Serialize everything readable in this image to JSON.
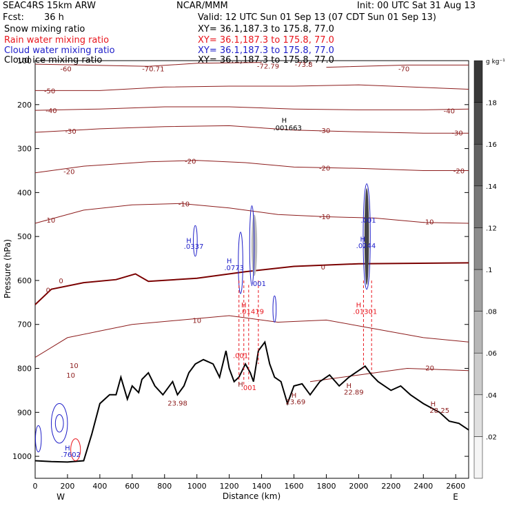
{
  "header": {
    "model": "SEAC4RS 15km ARW",
    "org": "NCAR/MMM",
    "init": "Init: 00 UTC Sat 31 Aug 13",
    "fcst_label": "Fcst:",
    "fcst_value": "36 h",
    "valid": "Valid: 12 UTC Sun 01 Sep 13 (07 CDT Sun 01 Sep 13)",
    "fields": [
      {
        "name": "Snow mixing ratio",
        "color": "#000000",
        "xy": "XY=  36.1,187.3 to 175.8, 77.0"
      },
      {
        "name": "Rain water mixing ratio",
        "color": "#e8141c",
        "xy": "XY=  36.1,187.3 to 175.8, 77.0"
      },
      {
        "name": "Cloud water mixing ratio",
        "color": "#1c1cc8",
        "xy": "XY=  36.1,187.3 to 175.8, 77.0"
      },
      {
        "name": "Cloud ice mixing ratio",
        "color": "#000000",
        "xy": "XY=  36.1,187.3 to 175.8, 77.0"
      }
    ]
  },
  "chart_data": {
    "type": "cross-section contour",
    "xlabel": "Distance (km)",
    "ylabel": "Pressure (hPa)",
    "xlim": [
      0,
      2680
    ],
    "ylim": [
      100,
      1050
    ],
    "x_ticks": [
      0,
      200,
      400,
      600,
      800,
      1000,
      1200,
      1400,
      1600,
      1800,
      2000,
      2200,
      2400,
      2600
    ],
    "y_ticks": [
      100,
      200,
      300,
      400,
      500,
      600,
      700,
      800,
      900,
      1000
    ],
    "x_end_labels": {
      "left": "W",
      "right": "E"
    },
    "colorbar": {
      "unit": "g kg⁻¹",
      "ticks": [
        ".02",
        ".04",
        ".06",
        ".08",
        ".1",
        ".12",
        ".14",
        ".16",
        ".18"
      ],
      "tick_values": [
        0.02,
        0.04,
        0.06,
        0.08,
        0.1,
        0.12,
        0.14,
        0.16,
        0.18
      ],
      "range": [
        0,
        0.2
      ]
    },
    "colors": {
      "temperature": "#8b1a1a",
      "freezing": "#7a0000",
      "terrain": "#000000",
      "rain": "#e8141c",
      "cloud_water": "#1c1cc8",
      "ice": "#000000"
    },
    "temperature_contours": [
      {
        "label": "-70",
        "pts": [
          [
            1800,
            115
          ],
          [
            2300,
            110
          ],
          [
            2680,
            110
          ]
        ]
      },
      {
        "label": "-60",
        "pts": [
          [
            0,
            108
          ],
          [
            300,
            110
          ],
          [
            700,
            113
          ],
          [
            1000,
            106
          ],
          [
            1400,
            104
          ]
        ]
      },
      {
        "label": "-50",
        "pts": [
          [
            0,
            168
          ],
          [
            400,
            168
          ],
          [
            800,
            160
          ],
          [
            1200,
            158
          ],
          [
            1600,
            158
          ],
          [
            2000,
            155
          ],
          [
            2680,
            165
          ]
        ]
      },
      {
        "label": "-40",
        "pts": [
          [
            0,
            213
          ],
          [
            400,
            210
          ],
          [
            800,
            205
          ],
          [
            1200,
            205
          ],
          [
            1600,
            210
          ],
          [
            2000,
            212
          ],
          [
            2400,
            212
          ],
          [
            2680,
            210
          ]
        ]
      },
      {
        "label": "-30",
        "pts": [
          [
            0,
            263
          ],
          [
            400,
            255
          ],
          [
            800,
            250
          ],
          [
            1200,
            248
          ],
          [
            1600,
            258
          ],
          [
            2000,
            262
          ],
          [
            2400,
            265
          ],
          [
            2680,
            265
          ]
        ]
      },
      {
        "label": "-20",
        "pts": [
          [
            0,
            355
          ],
          [
            300,
            340
          ],
          [
            700,
            330
          ],
          [
            1000,
            327
          ],
          [
            1300,
            332
          ],
          [
            1600,
            342
          ],
          [
            2000,
            345
          ],
          [
            2400,
            350
          ],
          [
            2680,
            350
          ]
        ]
      },
      {
        "label": "-10",
        "pts": [
          [
            0,
            470
          ],
          [
            300,
            440
          ],
          [
            600,
            428
          ],
          [
            900,
            425
          ],
          [
            1200,
            435
          ],
          [
            1500,
            450
          ],
          [
            1800,
            455
          ],
          [
            2100,
            458
          ],
          [
            2400,
            468
          ],
          [
            2680,
            470
          ]
        ]
      },
      {
        "label": "0",
        "freezing": true,
        "pts": [
          [
            0,
            655
          ],
          [
            100,
            620
          ],
          [
            300,
            605
          ],
          [
            500,
            598
          ],
          [
            620,
            585
          ],
          [
            700,
            602
          ],
          [
            1000,
            595
          ],
          [
            1300,
            580
          ],
          [
            1600,
            568
          ],
          [
            2000,
            562
          ],
          [
            2680,
            560
          ]
        ]
      },
      {
        "label": "10",
        "pts": [
          [
            0,
            775
          ],
          [
            200,
            730
          ],
          [
            400,
            715
          ],
          [
            600,
            700
          ],
          [
            900,
            690
          ],
          [
            1200,
            680
          ],
          [
            1500,
            695
          ],
          [
            1800,
            690
          ],
          [
            2100,
            710
          ],
          [
            2400,
            730
          ],
          [
            2680,
            740
          ]
        ]
      },
      {
        "label": "20",
        "pts": [
          [
            1700,
            830
          ],
          [
            2000,
            815
          ],
          [
            2300,
            800
          ],
          [
            2680,
            805
          ]
        ]
      }
    ],
    "temperature_labels": [
      {
        "text": "-60",
        "x": 190,
        "p": 118
      },
      {
        "text": "-70.71",
        "x": 730,
        "p": 118
      },
      {
        "text": "-72.79",
        "x": 1440,
        "p": 112
      },
      {
        "text": "-73.8",
        "x": 1660,
        "p": 108
      },
      {
        "text": "-70",
        "x": 2280,
        "p": 118
      },
      {
        "text": "-50",
        "x": 90,
        "p": 168
      },
      {
        "text": "-40",
        "x": 100,
        "p": 213
      },
      {
        "text": "-40",
        "x": 2560,
        "p": 214
      },
      {
        "text": "-30",
        "x": 220,
        "p": 260
      },
      {
        "text": "-30",
        "x": 1790,
        "p": 258
      },
      {
        "text": "-30",
        "x": 2610,
        "p": 264
      },
      {
        "text": "-20",
        "x": 210,
        "p": 352
      },
      {
        "text": "-20",
        "x": 960,
        "p": 328
      },
      {
        "text": "-20",
        "x": 1790,
        "p": 344
      },
      {
        "text": "-20",
        "x": 2620,
        "p": 350
      },
      {
        "text": "-10",
        "x": 90,
        "p": 462
      },
      {
        "text": "-10",
        "x": 920,
        "p": 425
      },
      {
        "text": "-10",
        "x": 1790,
        "p": 454
      },
      {
        "text": "-10",
        "x": 2430,
        "p": 466
      },
      {
        "text": "0",
        "x": 80,
        "p": 621
      },
      {
        "text": "0",
        "x": 160,
        "p": 600
      },
      {
        "text": "0",
        "x": 1780,
        "p": 569
      },
      {
        "text": "10",
        "x": 1000,
        "p": 690
      },
      {
        "text": "10",
        "x": 240,
        "p": 793
      },
      {
        "text": "10",
        "x": 220,
        "p": 815
      },
      {
        "text": "20",
        "x": 2440,
        "p": 798
      }
    ],
    "terrain": [
      [
        0,
        1010
      ],
      [
        100,
        1012
      ],
      [
        200,
        1013
      ],
      [
        300,
        1010
      ],
      [
        350,
        950
      ],
      [
        400,
        880
      ],
      [
        460,
        860
      ],
      [
        500,
        860
      ],
      [
        530,
        820
      ],
      [
        570,
        870
      ],
      [
        600,
        840
      ],
      [
        640,
        855
      ],
      [
        660,
        825
      ],
      [
        700,
        810
      ],
      [
        740,
        840
      ],
      [
        790,
        860
      ],
      [
        850,
        830
      ],
      [
        880,
        860
      ],
      [
        920,
        840
      ],
      [
        950,
        810
      ],
      [
        990,
        790
      ],
      [
        1040,
        780
      ],
      [
        1100,
        790
      ],
      [
        1140,
        820
      ],
      [
        1180,
        760
      ],
      [
        1200,
        800
      ],
      [
        1230,
        830
      ],
      [
        1260,
        820
      ],
      [
        1300,
        790
      ],
      [
        1330,
        810
      ],
      [
        1350,
        830
      ],
      [
        1380,
        760
      ],
      [
        1420,
        740
      ],
      [
        1450,
        790
      ],
      [
        1480,
        820
      ],
      [
        1520,
        830
      ],
      [
        1560,
        880
      ],
      [
        1600,
        840
      ],
      [
        1650,
        835
      ],
      [
        1700,
        860
      ],
      [
        1760,
        830
      ],
      [
        1820,
        815
      ],
      [
        1880,
        840
      ],
      [
        1940,
        820
      ],
      [
        2000,
        805
      ],
      [
        2040,
        795
      ],
      [
        2080,
        815
      ],
      [
        2120,
        830
      ],
      [
        2200,
        850
      ],
      [
        2260,
        840
      ],
      [
        2320,
        860
      ],
      [
        2400,
        880
      ],
      [
        2500,
        900
      ],
      [
        2560,
        920
      ],
      [
        2620,
        925
      ],
      [
        2680,
        940
      ]
    ],
    "point_labels": [
      {
        "text": "H",
        "x": 1540,
        "p": 235,
        "color": "#000000"
      },
      {
        "text": ".001663",
        "x": 1560,
        "p": 252,
        "color": "#000000"
      },
      {
        "text": "H",
        "x": 1200,
        "p": 555,
        "color": "#1c1cc8"
      },
      {
        "text": ".0773",
        "x": 1230,
        "p": 570,
        "color": "#1c1cc8"
      },
      {
        "text": "H",
        "x": 950,
        "p": 508,
        "color": "#1c1cc8"
      },
      {
        "text": ".0337",
        "x": 980,
        "p": 522,
        "color": "#1c1cc8"
      },
      {
        "text": "H",
        "x": 2025,
        "p": 505,
        "color": "#1c1cc8"
      },
      {
        "text": ".0244",
        "x": 2045,
        "p": 520,
        "color": "#1c1cc8"
      },
      {
        "text": ".001",
        "x": 2060,
        "p": 462,
        "color": "#1c1cc8"
      },
      {
        "text": ".001",
        "x": 1380,
        "p": 606,
        "color": "#1c1cc8"
      },
      {
        "text": "H",
        "x": 1290,
        "p": 655,
        "color": "#e8141c"
      },
      {
        "text": ".01419",
        "x": 1340,
        "p": 670,
        "color": "#e8141c"
      },
      {
        "text": "H",
        "x": 2000,
        "p": 655,
        "color": "#e8141c"
      },
      {
        "text": ".01301",
        "x": 2040,
        "p": 670,
        "color": "#e8141c"
      },
      {
        "text": ".001",
        "x": 1270,
        "p": 770,
        "color": "#e8141c"
      },
      {
        "text": ".001",
        "x": 1320,
        "p": 843,
        "color": "#e8141c"
      },
      {
        "text": "H",
        "x": 1270,
        "p": 835,
        "color": "#8b1a1a"
      },
      {
        "text": "23.98",
        "x": 880,
        "p": 878,
        "color": "#8b1a1a"
      },
      {
        "text": "H",
        "x": 1600,
        "p": 860,
        "color": "#8b1a1a"
      },
      {
        "text": "23.69",
        "x": 1610,
        "p": 875,
        "color": "#8b1a1a"
      },
      {
        "text": "H",
        "x": 1940,
        "p": 838,
        "color": "#8b1a1a"
      },
      {
        "text": "22.89",
        "x": 1970,
        "p": 853,
        "color": "#8b1a1a"
      },
      {
        "text": "H",
        "x": 2460,
        "p": 880,
        "color": "#8b1a1a"
      },
      {
        "text": "28.25",
        "x": 2500,
        "p": 895,
        "color": "#8b1a1a"
      },
      {
        "text": "H",
        "x": 200,
        "p": 980,
        "color": "#1c1cc8"
      },
      {
        "text": ".7602",
        "x": 220,
        "p": 995,
        "color": "#1c1cc8"
      }
    ]
  }
}
